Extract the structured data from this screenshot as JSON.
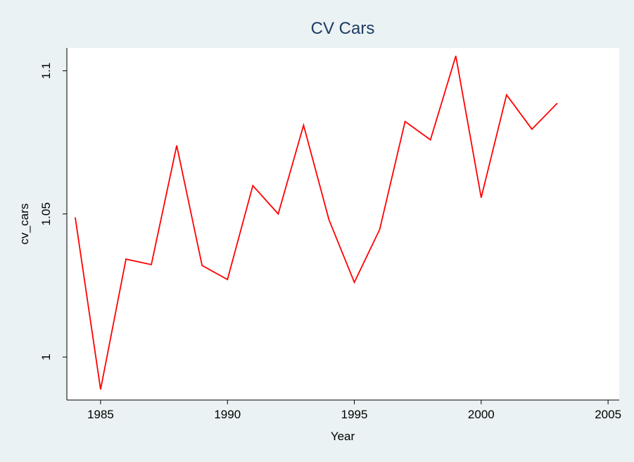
{
  "chart_data": {
    "type": "line",
    "title": "CV Cars",
    "x_label": "Year",
    "y_label": "cv_cars",
    "x": [
      1984,
      1985,
      1986,
      1987,
      1988,
      1989,
      1990,
      1991,
      1992,
      1993,
      1994,
      1995,
      1996,
      1997,
      1998,
      1999,
      2000,
      2001,
      2002,
      2003
    ],
    "series": [
      {
        "name": "cv_cars",
        "color": "#ff0000",
        "values": [
          1.0488,
          0.9887,
          1.0342,
          1.0323,
          1.0739,
          1.032,
          1.0271,
          1.0599,
          1.05,
          1.081,
          1.048,
          1.0261,
          1.0446,
          1.0823,
          1.0759,
          1.1052,
          1.0557,
          1.0916,
          1.0796,
          1.0887
        ]
      }
    ],
    "xlim": [
      1983.67,
      2005.44
    ],
    "xticks": [
      1985,
      1990,
      1995,
      2000,
      2005
    ],
    "ylim": [
      0.985,
      1.108
    ],
    "yticks": [
      1,
      1.05,
      1.1
    ],
    "grid": false
  }
}
